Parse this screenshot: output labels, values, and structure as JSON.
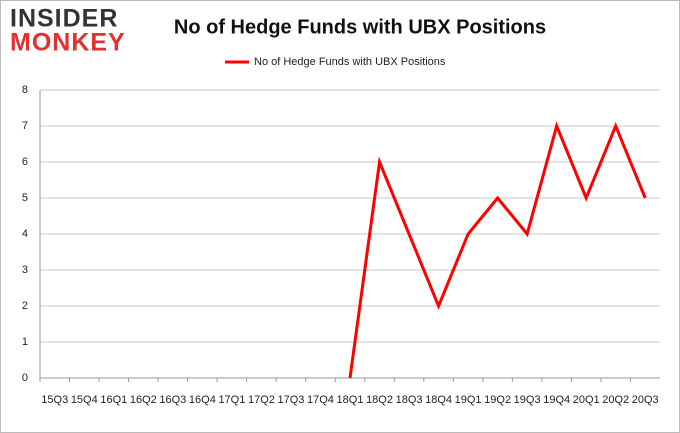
{
  "logo": {
    "line1": "INSIDER",
    "line2": "MONKEY"
  },
  "chart_data": {
    "type": "line",
    "title": "No of Hedge Funds with UBX Positions",
    "categories": [
      "15Q3",
      "15Q4",
      "16Q1",
      "16Q2",
      "16Q3",
      "16Q4",
      "17Q1",
      "17Q2",
      "17Q3",
      "17Q4",
      "18Q1",
      "18Q2",
      "18Q3",
      "18Q4",
      "19Q1",
      "19Q2",
      "19Q3",
      "19Q4",
      "20Q1",
      "20Q2",
      "20Q3"
    ],
    "series": [
      {
        "name": "No of Hedge Funds with UBX Positions",
        "color": "#ff0000",
        "values": [
          null,
          null,
          null,
          null,
          null,
          null,
          null,
          null,
          null,
          null,
          0,
          6,
          4,
          2,
          4,
          5,
          4,
          7,
          5,
          7,
          5
        ]
      }
    ],
    "ylim": [
      0,
      8
    ],
    "yticks": [
      0,
      1,
      2,
      3,
      4,
      5,
      6,
      7,
      8
    ],
    "grid": true,
    "legend": "top"
  }
}
